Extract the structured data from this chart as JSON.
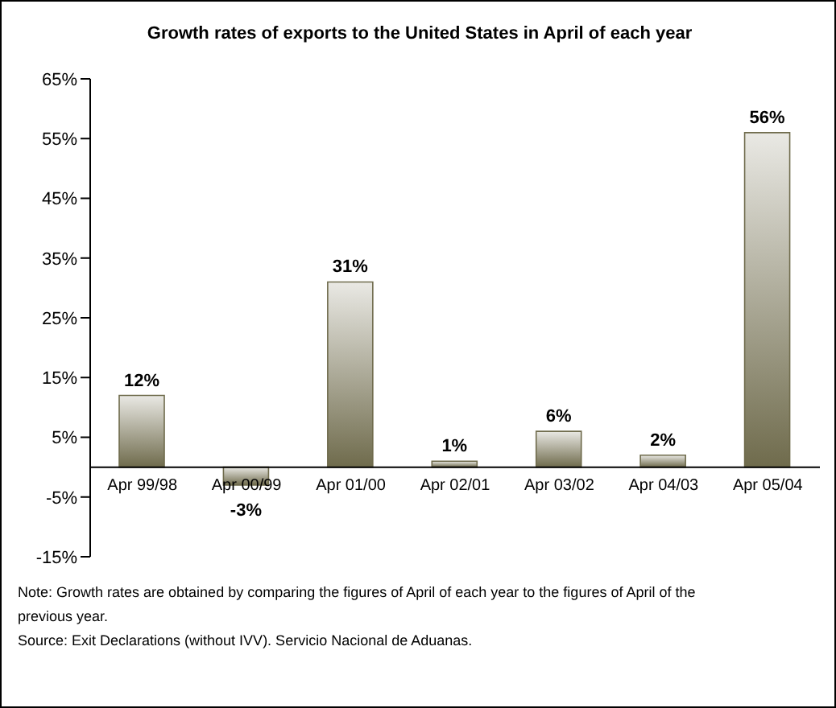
{
  "chart_data": {
    "type": "bar",
    "title": "Growth rates of exports to the United States in April of each year",
    "categories": [
      "Apr 99/98",
      "Apr 00/99",
      "Apr 01/00",
      "Apr 02/01",
      "Apr 03/02",
      "Apr 04/03",
      "Apr 05/04"
    ],
    "values": [
      12,
      -3,
      31,
      1,
      6,
      2,
      56
    ],
    "value_labels": [
      "12%",
      "-3%",
      "31%",
      "1%",
      "6%",
      "2%",
      "56%"
    ],
    "color": "#6f6b4c",
    "ylim": [
      -15,
      65
    ],
    "yticks": [
      {
        "value": -15,
        "label": "-15%"
      },
      {
        "value": -5,
        "label": "-5%"
      },
      {
        "value": 5,
        "label": "5%"
      },
      {
        "value": 15,
        "label": "15%"
      },
      {
        "value": 25,
        "label": "25%"
      },
      {
        "value": 35,
        "label": "35%"
      },
      {
        "value": 45,
        "label": "45%"
      },
      {
        "value": 55,
        "label": "55%"
      },
      {
        "value": 65,
        "label": "65%"
      }
    ],
    "grid": false,
    "legend": false,
    "annotations": [
      "Note: Growth rates are obtained by comparing the figures of April of each year to the figures of April of the previous year.",
      "Source: Exit Declarations (without IVV). Servicio Nacional de Aduanas."
    ]
  }
}
